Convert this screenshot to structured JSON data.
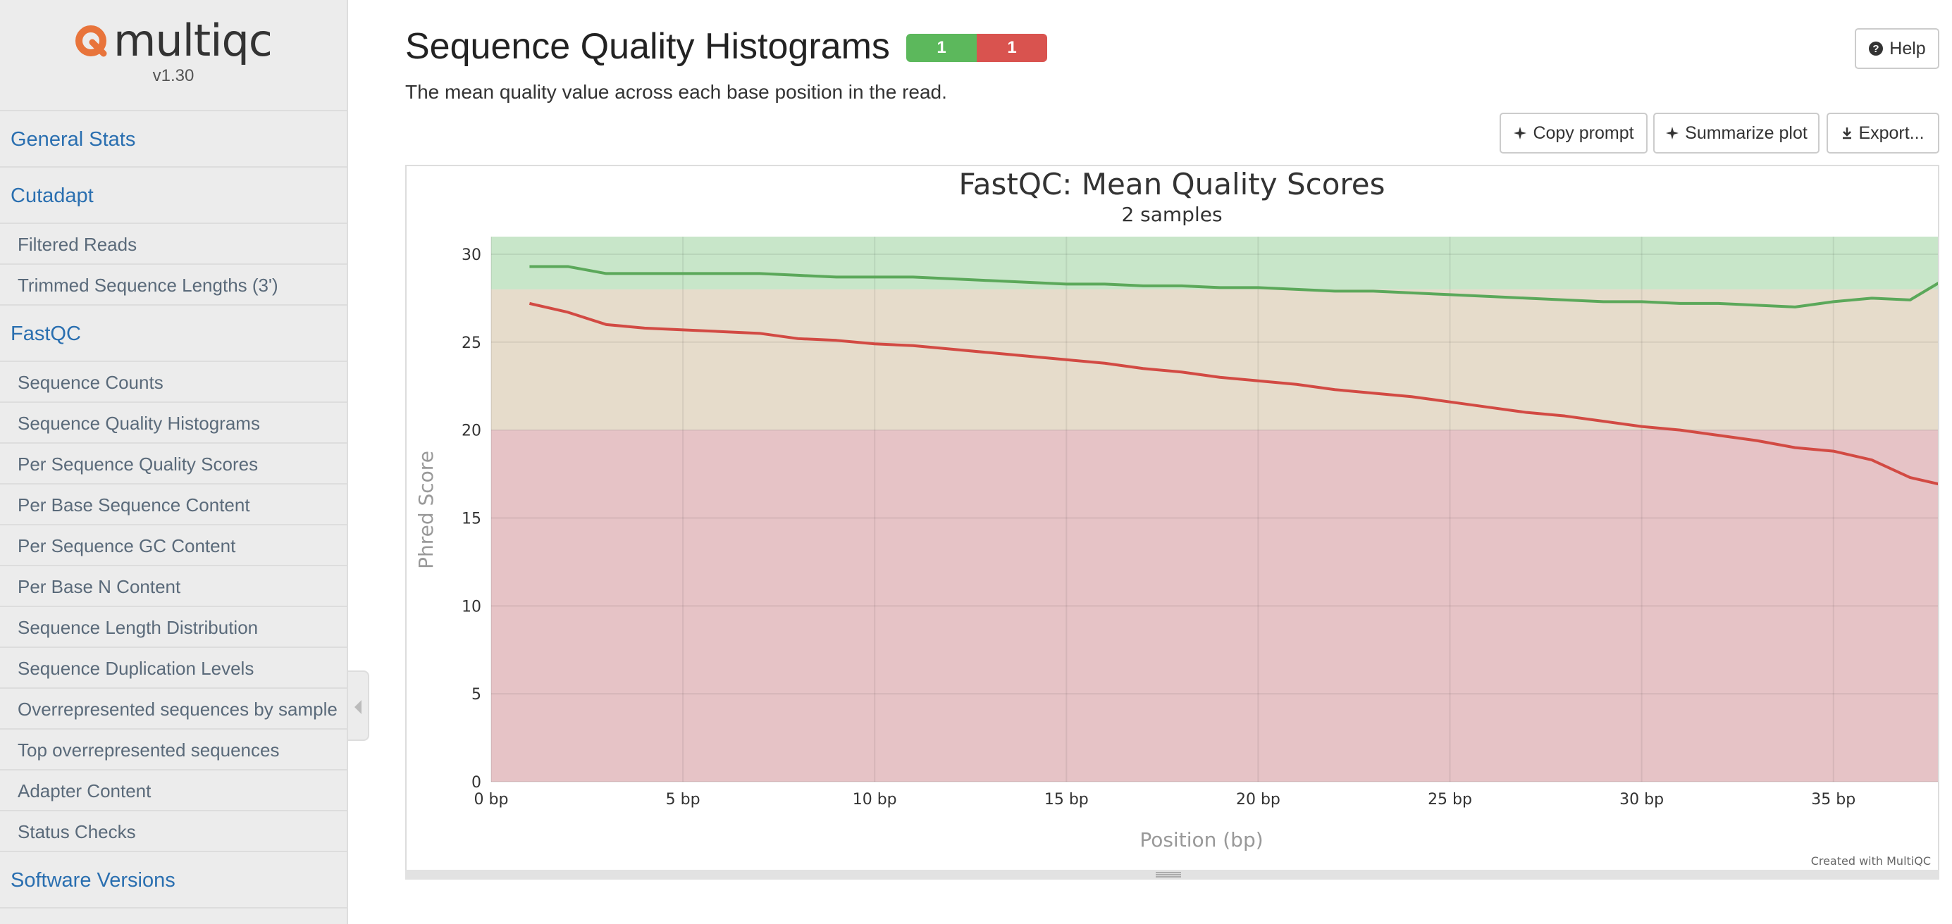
{
  "sidebar": {
    "logo_text": "multiqc",
    "version": "v1.30",
    "sections": [
      {
        "label": "General Stats",
        "items": []
      },
      {
        "label": "Cutadapt",
        "items": [
          "Filtered Reads",
          "Trimmed Sequence Lengths (3')"
        ]
      },
      {
        "label": "FastQC",
        "items": [
          "Sequence Counts",
          "Sequence Quality Histograms",
          "Per Sequence Quality Scores",
          "Per Base Sequence Content",
          "Per Sequence GC Content",
          "Per Base N Content",
          "Sequence Length Distribution",
          "Sequence Duplication Levels",
          "Overrepresented sequences by sample",
          "Top overrepresented sequences",
          "Adapter Content",
          "Status Checks"
        ]
      },
      {
        "label": "Software Versions",
        "items": []
      }
    ]
  },
  "header": {
    "title": "Sequence Quality Histograms",
    "badge_pass": "1",
    "badge_fail": "1",
    "subtitle": "The mean quality value across each base position in the read.",
    "help_label": "Help"
  },
  "toolbar": {
    "copy_prompt": "Copy prompt",
    "summarize_plot": "Summarize plot",
    "export": "Export..."
  },
  "colors": {
    "pass": "#5cb85c",
    "fail": "#d9534f",
    "band_good": "#c8e6c9",
    "band_warn": "#e6dccb",
    "band_bad": "#e6c3c6",
    "series_green": "#5ba85a",
    "series_red": "#d24a43"
  },
  "chart_data": {
    "type": "line",
    "title": "FastQC: Mean Quality Scores",
    "subtitle": "2 samples",
    "xlabel": "Position (bp)",
    "ylabel": "Phred Score",
    "credit": "Created with MultiQC",
    "xlim": [
      0,
      38
    ],
    "ylim": [
      0,
      31
    ],
    "xticks": [
      0,
      5,
      10,
      15,
      20,
      25,
      30,
      35
    ],
    "xtick_labels": [
      "0 bp",
      "5 bp",
      "10 bp",
      "15 bp",
      "20 bp",
      "25 bp",
      "30 bp",
      "35 bp"
    ],
    "yticks": [
      0,
      5,
      10,
      15,
      20,
      25,
      30
    ],
    "bands": [
      {
        "from": 28,
        "to": 31,
        "level": "good"
      },
      {
        "from": 20,
        "to": 28,
        "level": "warn"
      },
      {
        "from": 0,
        "to": 20,
        "level": "bad"
      }
    ],
    "grid": true,
    "x": [
      1,
      2,
      3,
      4,
      5,
      6,
      7,
      8,
      9,
      10,
      11,
      12,
      13,
      14,
      15,
      16,
      17,
      18,
      19,
      20,
      21,
      22,
      23,
      24,
      25,
      26,
      27,
      28,
      29,
      30,
      31,
      32,
      33,
      34,
      35,
      36,
      37,
      38
    ],
    "series": [
      {
        "color_key": "series_green",
        "values": [
          29.3,
          29.3,
          28.9,
          28.9,
          28.9,
          28.9,
          28.9,
          28.8,
          28.7,
          28.7,
          28.7,
          28.6,
          28.5,
          28.4,
          28.3,
          28.3,
          28.2,
          28.2,
          28.1,
          28.1,
          28.0,
          27.9,
          27.9,
          27.8,
          27.7,
          27.6,
          27.5,
          27.4,
          27.3,
          27.3,
          27.2,
          27.2,
          27.1,
          27.0,
          27.3,
          27.5,
          27.4,
          28.7
        ]
      },
      {
        "color_key": "series_red",
        "values": [
          27.2,
          26.7,
          26.0,
          25.8,
          25.7,
          25.6,
          25.5,
          25.2,
          25.1,
          24.9,
          24.8,
          24.6,
          24.4,
          24.2,
          24.0,
          23.8,
          23.5,
          23.3,
          23.0,
          22.8,
          22.6,
          22.3,
          22.1,
          21.9,
          21.6,
          21.3,
          21.0,
          20.8,
          20.5,
          20.2,
          20.0,
          19.7,
          19.4,
          19.0,
          18.8,
          18.3,
          17.3,
          16.8
        ]
      }
    ]
  }
}
